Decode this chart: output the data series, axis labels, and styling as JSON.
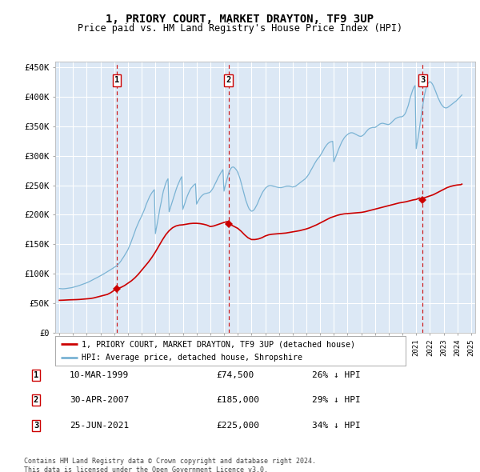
{
  "title": "1, PRIORY COURT, MARKET DRAYTON, TF9 3UP",
  "subtitle": "Price paid vs. HM Land Registry's House Price Index (HPI)",
  "legend_line1": "1, PRIORY COURT, MARKET DRAYTON, TF9 3UP (detached house)",
  "legend_line2": "HPI: Average price, detached house, Shropshire",
  "footer1": "Contains HM Land Registry data © Crown copyright and database right 2024.",
  "footer2": "This data is licensed under the Open Government Licence v3.0.",
  "purchases": [
    {
      "label": "1",
      "date": "10-MAR-1999",
      "price": 74500,
      "pct": "26%",
      "x": 1999.19
    },
    {
      "label": "2",
      "date": "30-APR-2007",
      "price": 185000,
      "pct": "29%",
      "x": 2007.33
    },
    {
      "label": "3",
      "date": "25-JUN-2021",
      "price": 225000,
      "pct": "34%",
      "x": 2021.48
    }
  ],
  "hpi_color": "#7ab3d4",
  "price_color": "#cc0000",
  "dashed_color": "#cc0000",
  "background_chart": "#dce8f5",
  "grid_color": "#ffffff",
  "ylim": [
    0,
    460000
  ],
  "xlim_start": 1994.7,
  "xlim_end": 2025.3,
  "hpi_data_x": [
    1995.0,
    1995.08,
    1995.17,
    1995.25,
    1995.33,
    1995.42,
    1995.5,
    1995.58,
    1995.67,
    1995.75,
    1995.83,
    1995.92,
    1996.0,
    1996.08,
    1996.17,
    1996.25,
    1996.33,
    1996.42,
    1996.5,
    1996.58,
    1996.67,
    1996.75,
    1996.83,
    1996.92,
    1997.0,
    1997.08,
    1997.17,
    1997.25,
    1997.33,
    1997.42,
    1997.5,
    1997.58,
    1997.67,
    1997.75,
    1997.83,
    1997.92,
    1998.0,
    1998.08,
    1998.17,
    1998.25,
    1998.33,
    1998.42,
    1998.5,
    1998.58,
    1998.67,
    1998.75,
    1998.83,
    1998.92,
    1999.0,
    1999.08,
    1999.17,
    1999.25,
    1999.33,
    1999.42,
    1999.5,
    1999.58,
    1999.67,
    1999.75,
    1999.83,
    1999.92,
    2000.0,
    2000.08,
    2000.17,
    2000.25,
    2000.33,
    2000.42,
    2000.5,
    2000.58,
    2000.67,
    2000.75,
    2000.83,
    2000.92,
    2001.0,
    2001.08,
    2001.17,
    2001.25,
    2001.33,
    2001.42,
    2001.5,
    2001.58,
    2001.67,
    2001.75,
    2001.83,
    2001.92,
    2002.0,
    2002.08,
    2002.17,
    2002.25,
    2002.33,
    2002.42,
    2002.5,
    2002.58,
    2002.67,
    2002.75,
    2002.83,
    2002.92,
    2003.0,
    2003.08,
    2003.17,
    2003.25,
    2003.33,
    2003.42,
    2003.5,
    2003.58,
    2003.67,
    2003.75,
    2003.83,
    2003.92,
    2004.0,
    2004.08,
    2004.17,
    2004.25,
    2004.33,
    2004.42,
    2004.5,
    2004.58,
    2004.67,
    2004.75,
    2004.83,
    2004.92,
    2005.0,
    2005.08,
    2005.17,
    2005.25,
    2005.33,
    2005.42,
    2005.5,
    2005.58,
    2005.67,
    2005.75,
    2005.83,
    2005.92,
    2006.0,
    2006.08,
    2006.17,
    2006.25,
    2006.33,
    2006.42,
    2006.5,
    2006.58,
    2006.67,
    2006.75,
    2006.83,
    2006.92,
    2007.0,
    2007.08,
    2007.17,
    2007.25,
    2007.33,
    2007.42,
    2007.5,
    2007.58,
    2007.67,
    2007.75,
    2007.83,
    2007.92,
    2008.0,
    2008.08,
    2008.17,
    2008.25,
    2008.33,
    2008.42,
    2008.5,
    2008.58,
    2008.67,
    2008.75,
    2008.83,
    2008.92,
    2009.0,
    2009.08,
    2009.17,
    2009.25,
    2009.33,
    2009.42,
    2009.5,
    2009.58,
    2009.67,
    2009.75,
    2009.83,
    2009.92,
    2010.0,
    2010.08,
    2010.17,
    2010.25,
    2010.33,
    2010.42,
    2010.5,
    2010.58,
    2010.67,
    2010.75,
    2010.83,
    2010.92,
    2011.0,
    2011.08,
    2011.17,
    2011.25,
    2011.33,
    2011.42,
    2011.5,
    2011.58,
    2011.67,
    2011.75,
    2011.83,
    2011.92,
    2012.0,
    2012.08,
    2012.17,
    2012.25,
    2012.33,
    2012.42,
    2012.5,
    2012.58,
    2012.67,
    2012.75,
    2012.83,
    2012.92,
    2013.0,
    2013.08,
    2013.17,
    2013.25,
    2013.33,
    2013.42,
    2013.5,
    2013.58,
    2013.67,
    2013.75,
    2013.83,
    2013.92,
    2014.0,
    2014.08,
    2014.17,
    2014.25,
    2014.33,
    2014.42,
    2014.5,
    2014.58,
    2014.67,
    2014.75,
    2014.83,
    2014.92,
    2015.0,
    2015.08,
    2015.17,
    2015.25,
    2015.33,
    2015.42,
    2015.5,
    2015.58,
    2015.67,
    2015.75,
    2015.83,
    2015.92,
    2016.0,
    2016.08,
    2016.17,
    2016.25,
    2016.33,
    2016.42,
    2016.5,
    2016.58,
    2016.67,
    2016.75,
    2016.83,
    2016.92,
    2017.0,
    2017.08,
    2017.17,
    2017.25,
    2017.33,
    2017.42,
    2017.5,
    2017.58,
    2017.67,
    2017.75,
    2017.83,
    2017.92,
    2018.0,
    2018.08,
    2018.17,
    2018.25,
    2018.33,
    2018.42,
    2018.5,
    2018.58,
    2018.67,
    2018.75,
    2018.83,
    2018.92,
    2019.0,
    2019.08,
    2019.17,
    2019.25,
    2019.33,
    2019.42,
    2019.5,
    2019.58,
    2019.67,
    2019.75,
    2019.83,
    2019.92,
    2020.0,
    2020.08,
    2020.17,
    2020.25,
    2020.33,
    2020.42,
    2020.5,
    2020.58,
    2020.67,
    2020.75,
    2020.83,
    2020.92,
    2021.0,
    2021.08,
    2021.17,
    2021.25,
    2021.33,
    2021.42,
    2021.5,
    2021.58,
    2021.67,
    2021.75,
    2021.83,
    2021.92,
    2022.0,
    2022.08,
    2022.17,
    2022.25,
    2022.33,
    2022.42,
    2022.5,
    2022.58,
    2022.67,
    2022.75,
    2022.83,
    2022.92,
    2023.0,
    2023.08,
    2023.17,
    2023.25,
    2023.33,
    2023.42,
    2023.5,
    2023.58,
    2023.67,
    2023.75,
    2023.83,
    2023.92,
    2024.0,
    2024.08,
    2024.17,
    2024.25,
    2024.33
  ],
  "hpi_data_y": [
    75000,
    74800,
    74600,
    74500,
    74600,
    74800,
    75000,
    75300,
    75600,
    75900,
    76200,
    76500,
    77000,
    77500,
    78000,
    78600,
    79200,
    79800,
    80500,
    81200,
    81900,
    82600,
    83300,
    84000,
    84800,
    85600,
    86500,
    87500,
    88500,
    89500,
    90500,
    91500,
    92500,
    93500,
    94500,
    95500,
    96500,
    97500,
    98700,
    99900,
    101100,
    102300,
    103500,
    104700,
    105900,
    107100,
    108300,
    109500,
    110800,
    112100,
    113400,
    115000,
    117000,
    119500,
    122000,
    125000,
    128000,
    131000,
    134000,
    137500,
    141000,
    145500,
    150000,
    155000,
    160000,
    165500,
    171000,
    176500,
    181500,
    186000,
    190000,
    194000,
    198000,
    202500,
    207000,
    212000,
    217500,
    222500,
    227000,
    231000,
    234500,
    237500,
    240000,
    242500,
    168000,
    178000,
    189000,
    200000,
    211000,
    221000,
    231000,
    240000,
    247000,
    253000,
    257500,
    261000,
    205000,
    211000,
    217500,
    224000,
    230000,
    236000,
    242000,
    247500,
    252500,
    257000,
    261000,
    264500,
    209000,
    215000,
    221000,
    227000,
    232000,
    237000,
    241000,
    244500,
    247000,
    249000,
    251000,
    252500,
    218000,
    222000,
    225500,
    228500,
    231000,
    233000,
    234500,
    235500,
    236000,
    236500,
    237000,
    237500,
    238500,
    241000,
    244000,
    247500,
    251500,
    255500,
    259500,
    263500,
    267000,
    270500,
    273500,
    276500,
    240000,
    248000,
    256000,
    263000,
    270000,
    275000,
    278500,
    280500,
    281000,
    280000,
    278000,
    275500,
    272000,
    267000,
    261000,
    254000,
    247000,
    239500,
    232000,
    225000,
    219000,
    214000,
    210000,
    207500,
    206000,
    206500,
    208000,
    210500,
    214000,
    218000,
    222500,
    227000,
    231500,
    235500,
    239000,
    242000,
    244500,
    246500,
    248000,
    249000,
    249500,
    249500,
    249000,
    248500,
    248000,
    247500,
    247000,
    246500,
    246000,
    246000,
    246000,
    246500,
    247000,
    247500,
    248000,
    248500,
    248500,
    248500,
    248000,
    247500,
    247000,
    247500,
    248000,
    249000,
    250500,
    252000,
    253500,
    255000,
    256500,
    258000,
    259500,
    261000,
    263000,
    265500,
    268500,
    272000,
    275500,
    279000,
    282500,
    286000,
    289500,
    292500,
    295000,
    297500,
    300000,
    303000,
    306500,
    310000,
    313500,
    316500,
    319000,
    321000,
    322500,
    323500,
    324000,
    324500,
    290000,
    295000,
    300000,
    305000,
    310000,
    315000,
    319500,
    323500,
    327000,
    330000,
    332500,
    334500,
    336000,
    337500,
    338500,
    339000,
    339000,
    338500,
    337500,
    336500,
    335500,
    334500,
    333500,
    333000,
    333000,
    334000,
    335500,
    337500,
    340000,
    342500,
    344500,
    346000,
    347000,
    347500,
    348000,
    348000,
    348000,
    349000,
    350500,
    352000,
    353500,
    354500,
    355000,
    355000,
    354500,
    354000,
    353500,
    353000,
    353000,
    354000,
    355500,
    357500,
    359500,
    361500,
    363000,
    364000,
    365000,
    365500,
    366000,
    366000,
    366500,
    368000,
    370500,
    374000,
    379000,
    385000,
    392000,
    399500,
    406000,
    411500,
    416000,
    419000,
    312000,
    322000,
    334000,
    348000,
    362000,
    376000,
    389000,
    400500,
    409500,
    416500,
    421500,
    424500,
    425500,
    424500,
    422000,
    418500,
    414000,
    409000,
    404000,
    399000,
    394500,
    390500,
    387000,
    384500,
    382500,
    381500,
    381000,
    381500,
    382500,
    384000,
    385500,
    387000,
    388500,
    390000,
    391500,
    393000,
    395000,
    397000,
    399000,
    401000,
    403000
  ],
  "price_data_x": [
    1995.0,
    1995.25,
    1995.5,
    1995.75,
    1996.0,
    1996.25,
    1996.5,
    1996.75,
    1997.0,
    1997.25,
    1997.5,
    1997.75,
    1998.0,
    1998.25,
    1998.5,
    1998.75,
    1999.0,
    1999.19,
    1999.5,
    1999.75,
    2000.0,
    2000.25,
    2000.5,
    2000.75,
    2001.0,
    2001.25,
    2001.5,
    2001.75,
    2002.0,
    2002.25,
    2002.5,
    2002.75,
    2003.0,
    2003.25,
    2003.5,
    2003.75,
    2004.0,
    2004.25,
    2004.5,
    2004.75,
    2005.0,
    2005.25,
    2005.5,
    2005.75,
    2006.0,
    2006.25,
    2006.5,
    2006.75,
    2007.0,
    2007.25,
    2007.33,
    2007.5,
    2007.75,
    2008.0,
    2008.25,
    2008.5,
    2008.75,
    2009.0,
    2009.25,
    2009.5,
    2009.75,
    2010.0,
    2010.25,
    2010.5,
    2010.75,
    2011.0,
    2011.25,
    2011.5,
    2011.75,
    2012.0,
    2012.25,
    2012.5,
    2012.75,
    2013.0,
    2013.25,
    2013.5,
    2013.75,
    2014.0,
    2014.25,
    2014.5,
    2014.75,
    2015.0,
    2015.25,
    2015.5,
    2015.75,
    2016.0,
    2016.25,
    2016.5,
    2016.75,
    2017.0,
    2017.25,
    2017.5,
    2017.75,
    2018.0,
    2018.25,
    2018.5,
    2018.75,
    2019.0,
    2019.25,
    2019.5,
    2019.75,
    2020.0,
    2020.25,
    2020.5,
    2020.75,
    2021.0,
    2021.25,
    2021.48,
    2021.5,
    2021.75,
    2022.0,
    2022.25,
    2022.5,
    2022.75,
    2023.0,
    2023.25,
    2023.5,
    2023.75,
    2024.0,
    2024.25,
    2024.33
  ],
  "price_data_y": [
    55000,
    55200,
    55500,
    55800,
    56000,
    56200,
    56500,
    57000,
    57500,
    58000,
    59000,
    60500,
    62000,
    63500,
    65000,
    68000,
    72000,
    74500,
    77000,
    80000,
    84000,
    88000,
    93000,
    99000,
    106000,
    113000,
    120000,
    128000,
    137000,
    147000,
    157000,
    166000,
    173000,
    178000,
    181000,
    182500,
    183000,
    184000,
    185000,
    185500,
    185500,
    185000,
    184000,
    182500,
    180000,
    181000,
    183000,
    185000,
    187000,
    188500,
    185000,
    183000,
    180000,
    177000,
    172000,
    166000,
    161000,
    158000,
    158000,
    159000,
    161000,
    164000,
    166000,
    167000,
    167500,
    168000,
    168500,
    169000,
    170000,
    171000,
    172000,
    173000,
    174500,
    176000,
    178000,
    180500,
    183000,
    186000,
    189000,
    192000,
    195000,
    197000,
    199000,
    200500,
    201500,
    202000,
    202500,
    203000,
    203500,
    204000,
    205000,
    206500,
    208000,
    209500,
    211000,
    212500,
    214000,
    215500,
    217000,
    218500,
    220000,
    221000,
    222000,
    223500,
    225000,
    226000,
    228500,
    225000,
    228000,
    230000,
    232000,
    234000,
    237000,
    240000,
    243000,
    246000,
    248000,
    249500,
    250500,
    251000,
    252000
  ]
}
